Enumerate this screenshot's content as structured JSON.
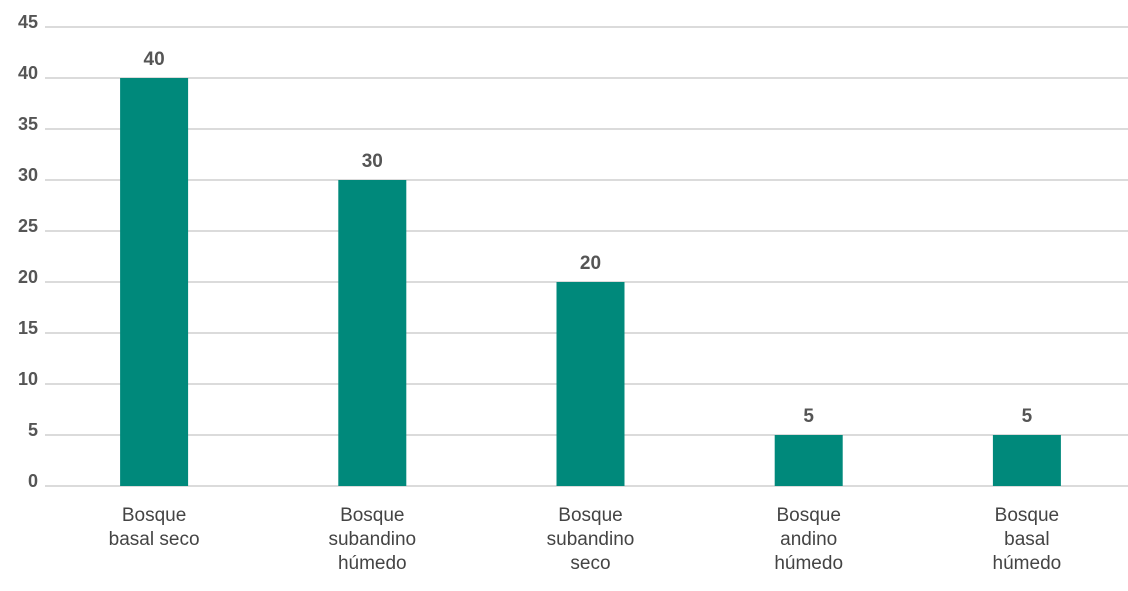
{
  "chart_data": {
    "type": "bar",
    "categories": [
      "Bosque basal seco",
      "Bosque subandino húmedo",
      "Bosque subandino seco",
      "Bosque andino húmedo",
      "Bosque basal húmedo"
    ],
    "values": [
      40,
      30,
      20,
      5,
      5
    ],
    "color": "#00897b",
    "ylim": [
      0,
      45
    ],
    "yticks": [
      0,
      5,
      10,
      15,
      20,
      25,
      30,
      35,
      40,
      45
    ],
    "grid": true
  }
}
